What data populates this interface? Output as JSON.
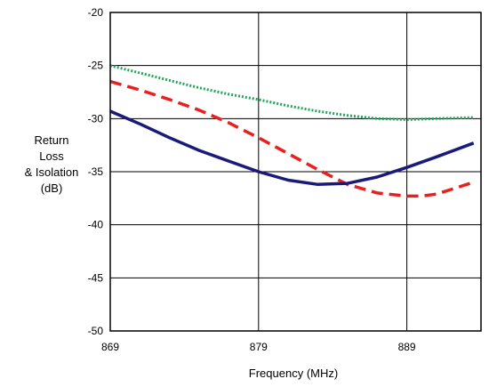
{
  "chart_data": {
    "type": "line",
    "title": "",
    "xlabel": "Frequency (MHz)",
    "ylabel_lines": [
      "Return",
      "Loss",
      "& Isolation",
      "(dB)"
    ],
    "xlim": [
      869,
      894
    ],
    "ylim": [
      -50,
      -20
    ],
    "x_ticks": [
      869,
      879,
      889
    ],
    "x_tick_labels": [
      "869",
      "879",
      "889"
    ],
    "y_ticks": [
      -50,
      -45,
      -40,
      -35,
      -30,
      -25,
      -20
    ],
    "y_tick_labels": [
      "-50",
      "-45",
      "-40",
      "-35",
      "-30",
      "-25",
      "-20"
    ],
    "grid": true,
    "legend": "none",
    "series": [
      {
        "color": "#22a65a",
        "style": "dotted",
        "x": [
          869,
          871,
          873,
          875,
          877,
          879,
          881,
          883,
          885,
          887,
          889,
          891,
          893.5
        ],
        "y": [
          -25.0,
          -25.7,
          -26.4,
          -27.1,
          -27.7,
          -28.2,
          -28.8,
          -29.3,
          -29.7,
          -30.0,
          -30.1,
          -30.0,
          -29.9
        ]
      },
      {
        "color": "#e82020",
        "style": "dashed",
        "x": [
          869,
          871,
          873,
          875,
          877,
          879,
          881,
          883,
          885,
          887,
          889,
          890,
          891,
          893.5
        ],
        "y": [
          -26.5,
          -27.3,
          -28.2,
          -29.2,
          -30.4,
          -31.8,
          -33.3,
          -34.8,
          -36.2,
          -37.0,
          -37.3,
          -37.3,
          -37.1,
          -36.0
        ]
      },
      {
        "color": "#1a1a7a",
        "style": "solid",
        "x": [
          869,
          871,
          873,
          875,
          877,
          879,
          881,
          883,
          885,
          887,
          889,
          891,
          893.5
        ],
        "y": [
          -29.3,
          -30.5,
          -31.8,
          -33.0,
          -34.0,
          -35.0,
          -35.8,
          -36.2,
          -36.1,
          -35.5,
          -34.6,
          -33.6,
          -32.3
        ]
      }
    ]
  }
}
